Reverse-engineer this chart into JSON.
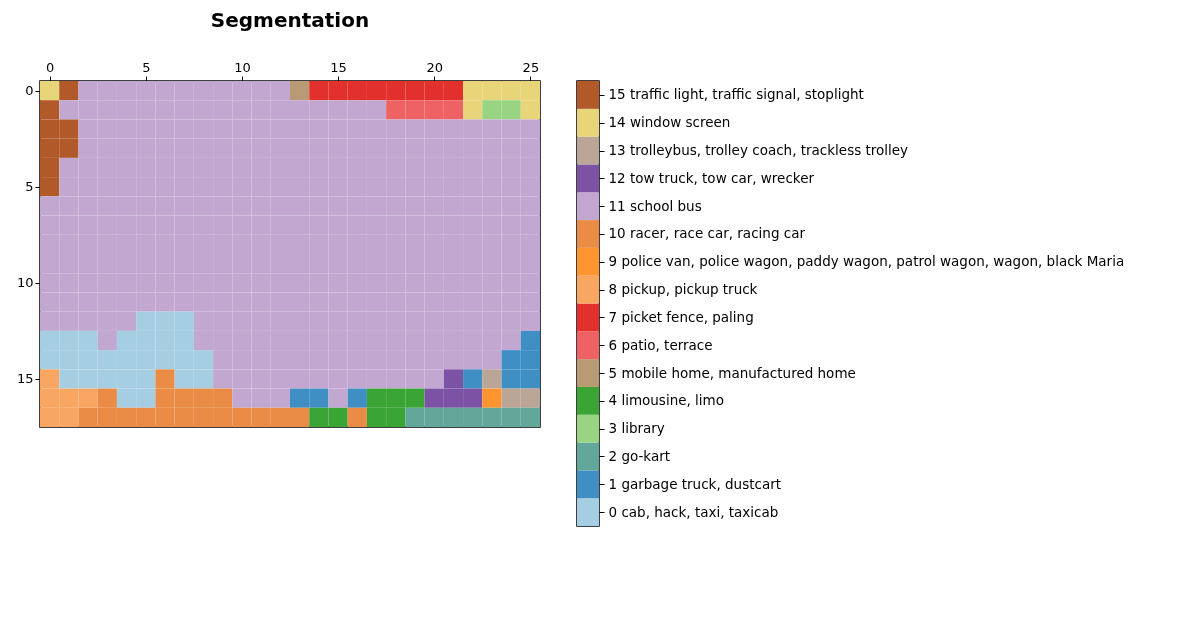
{
  "chart_data": {
    "type": "heatmap",
    "title": "Segmentation",
    "categories": [
      "0",
      null,
      null,
      null,
      null,
      "5",
      null,
      null,
      null,
      null,
      "10",
      null,
      null,
      null,
      null,
      "15",
      null,
      null,
      null,
      null,
      "20",
      null,
      null,
      null,
      null,
      "25"
    ],
    "y_categories": [
      "0",
      null,
      null,
      null,
      null,
      "5",
      null,
      null,
      null,
      null,
      "10",
      null,
      null,
      null,
      null,
      "15",
      null,
      null
    ],
    "cells": [
      [
        14,
        15,
        11,
        11,
        11,
        11,
        11,
        11,
        11,
        11,
        11,
        11,
        11,
        5,
        7,
        7,
        7,
        7,
        7,
        7,
        7,
        7,
        14,
        14,
        14,
        14
      ],
      [
        15,
        11,
        11,
        11,
        11,
        11,
        11,
        11,
        11,
        11,
        11,
        11,
        11,
        11,
        11,
        11,
        11,
        11,
        6,
        6,
        6,
        6,
        14,
        3,
        3,
        14
      ],
      [
        15,
        15,
        11,
        11,
        11,
        11,
        11,
        11,
        11,
        11,
        11,
        11,
        11,
        11,
        11,
        11,
        11,
        11,
        11,
        11,
        11,
        11,
        11,
        11,
        11,
        11
      ],
      [
        15,
        15,
        11,
        11,
        11,
        11,
        11,
        11,
        11,
        11,
        11,
        11,
        11,
        11,
        11,
        11,
        11,
        11,
        11,
        11,
        11,
        11,
        11,
        11,
        11,
        11
      ],
      [
        15,
        11,
        11,
        11,
        11,
        11,
        11,
        11,
        11,
        11,
        11,
        11,
        11,
        11,
        11,
        11,
        11,
        11,
        11,
        11,
        11,
        11,
        11,
        11,
        11,
        11
      ],
      [
        15,
        11,
        11,
        11,
        11,
        11,
        11,
        11,
        11,
        11,
        11,
        11,
        11,
        11,
        11,
        11,
        11,
        11,
        11,
        11,
        11,
        11,
        11,
        11,
        11,
        11
      ],
      [
        11,
        11,
        11,
        11,
        11,
        11,
        11,
        11,
        11,
        11,
        11,
        11,
        11,
        11,
        11,
        11,
        11,
        11,
        11,
        11,
        11,
        11,
        11,
        11,
        11,
        11
      ],
      [
        11,
        11,
        11,
        11,
        11,
        11,
        11,
        11,
        11,
        11,
        11,
        11,
        11,
        11,
        11,
        11,
        11,
        11,
        11,
        11,
        11,
        11,
        11,
        11,
        11,
        11
      ],
      [
        11,
        11,
        11,
        11,
        11,
        11,
        11,
        11,
        11,
        11,
        11,
        11,
        11,
        11,
        11,
        11,
        11,
        11,
        11,
        11,
        11,
        11,
        11,
        11,
        11,
        11
      ],
      [
        11,
        11,
        11,
        11,
        11,
        11,
        11,
        11,
        11,
        11,
        11,
        11,
        11,
        11,
        11,
        11,
        11,
        11,
        11,
        11,
        11,
        11,
        11,
        11,
        11,
        11
      ],
      [
        11,
        11,
        11,
        11,
        11,
        11,
        11,
        11,
        11,
        11,
        11,
        11,
        11,
        11,
        11,
        11,
        11,
        11,
        11,
        11,
        11,
        11,
        11,
        11,
        11,
        11
      ],
      [
        11,
        11,
        11,
        11,
        11,
        11,
        11,
        11,
        11,
        11,
        11,
        11,
        11,
        11,
        11,
        11,
        11,
        11,
        11,
        11,
        11,
        11,
        11,
        11,
        11,
        11
      ],
      [
        11,
        11,
        11,
        11,
        11,
        0,
        0,
        0,
        11,
        11,
        11,
        11,
        11,
        11,
        11,
        11,
        11,
        11,
        11,
        11,
        11,
        11,
        11,
        11,
        11,
        11
      ],
      [
        0,
        0,
        0,
        11,
        0,
        0,
        0,
        0,
        11,
        11,
        11,
        11,
        11,
        11,
        11,
        11,
        11,
        11,
        11,
        11,
        11,
        11,
        11,
        11,
        11,
        1
      ],
      [
        0,
        0,
        0,
        0,
        0,
        0,
        0,
        0,
        0,
        11,
        11,
        11,
        11,
        11,
        11,
        11,
        11,
        11,
        11,
        11,
        11,
        11,
        11,
        11,
        1,
        1
      ],
      [
        8,
        0,
        0,
        0,
        0,
        0,
        10,
        0,
        0,
        11,
        11,
        11,
        11,
        11,
        11,
        11,
        11,
        11,
        11,
        11,
        11,
        12,
        1,
        13,
        1,
        1
      ],
      [
        8,
        8,
        8,
        10,
        0,
        0,
        10,
        10,
        10,
        10,
        11,
        11,
        11,
        1,
        1,
        11,
        1,
        4,
        4,
        4,
        12,
        12,
        12,
        9,
        13,
        13
      ],
      [
        8,
        8,
        10,
        10,
        10,
        10,
        10,
        10,
        10,
        10,
        10,
        10,
        10,
        10,
        4,
        4,
        10,
        4,
        4,
        2,
        2,
        2,
        2,
        2,
        2,
        2
      ]
    ],
    "colors": [
      "#a6cee3",
      "#3f8fc4",
      "#62a79a",
      "#98d482",
      "#3aa434",
      "#b89a74",
      "#ef6264",
      "#e2302c",
      "#f9a662",
      "#fe9530",
      "#ea8c45",
      "#c2a8d1",
      "#7c53a4",
      "#baa596",
      "#e8d57a",
      "#b15928"
    ],
    "clim": [
      -0.5,
      15.5
    ],
    "cticks": [
      {
        "value": 0,
        "label": "0 cab, hack, taxi, taxicab"
      },
      {
        "value": 1,
        "label": "1 garbage truck, dustcart"
      },
      {
        "value": 2,
        "label": "2 go-kart"
      },
      {
        "value": 3,
        "label": "3 library"
      },
      {
        "value": 4,
        "label": "4 limousine, limo"
      },
      {
        "value": 5,
        "label": "5 mobile home, manufactured home"
      },
      {
        "value": 6,
        "label": "6 patio, terrace"
      },
      {
        "value": 7,
        "label": "7 picket fence, paling"
      },
      {
        "value": 8,
        "label": "8 pickup, pickup truck"
      },
      {
        "value": 9,
        "label": "9 police van, police wagon, paddy wagon, patrol wagon, wagon, black Maria"
      },
      {
        "value": 10,
        "label": "10 racer, race car, racing car"
      },
      {
        "value": 11,
        "label": "11 school bus"
      },
      {
        "value": 12,
        "label": "12 tow truck, tow car, wrecker"
      },
      {
        "value": 13,
        "label": "13 trolleybus, trolley coach, trackless trolley"
      },
      {
        "value": 14,
        "label": "14 window screen"
      },
      {
        "value": 15,
        "label": "15 traffic light, traffic signal, stoplight"
      }
    ],
    "grid": false
  }
}
